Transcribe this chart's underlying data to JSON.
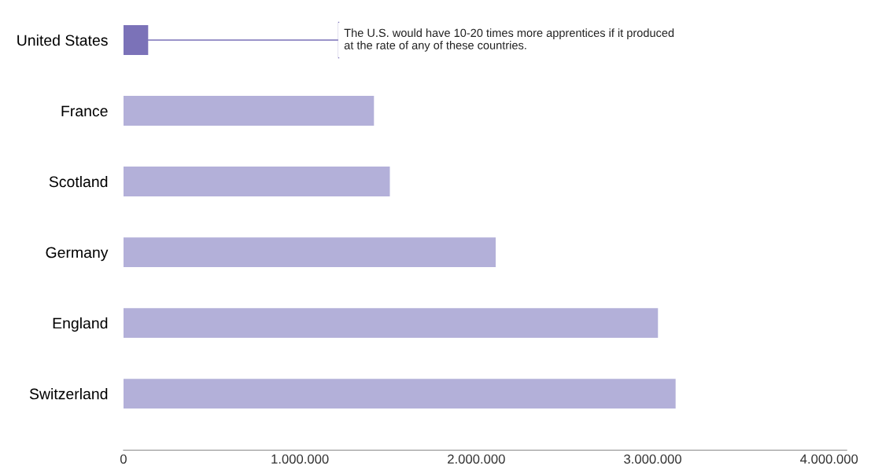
{
  "chart_data": {
    "type": "bar",
    "orientation": "horizontal",
    "categories": [
      "United States",
      "France",
      "Scotland",
      "Germany",
      "England",
      "Switzerland"
    ],
    "values": [
      140000,
      1420000,
      1510000,
      2110000,
      3030000,
      3130000
    ],
    "colors": [
      "#7b72b8",
      "#b3b0d9",
      "#b3b0d9",
      "#b3b0d9",
      "#b3b0d9",
      "#b3b0d9"
    ],
    "xlim": [
      0,
      4100000
    ],
    "xticks": [
      0,
      {
        "value": 1000000,
        "label": "1.000.000"
      },
      {
        "value": 2000000,
        "label": "2.000.000"
      },
      {
        "value": 3000000,
        "label": "3.000.000"
      },
      {
        "value": 4000000,
        "label": "4.000.000"
      }
    ],
    "annotations": [
      {
        "text": "The U.S. would have 10-20 times more apprentices if it produced\nat the rate of any of these countries.",
        "x": 140000,
        "y": "United States"
      }
    ],
    "grid": false,
    "legend": false
  }
}
